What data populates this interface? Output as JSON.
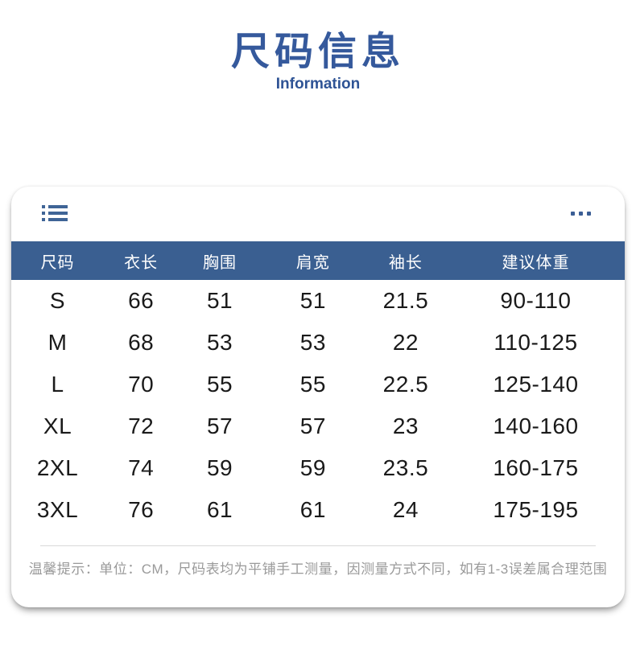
{
  "chart_data": {
    "type": "table",
    "title": "尺码信息",
    "subtitle": "Information",
    "unit": "CM",
    "columns": [
      "尺码",
      "衣长",
      "胸围",
      "肩宽",
      "袖长",
      "建议体重"
    ],
    "rows": [
      [
        "S",
        "66",
        "51",
        "51",
        "21.5",
        "90-110"
      ],
      [
        "M",
        "68",
        "53",
        "53",
        "22",
        "110-125"
      ],
      [
        "L",
        "70",
        "55",
        "55",
        "22.5",
        "125-140"
      ],
      [
        "XL",
        "72",
        "57",
        "57",
        "23",
        "140-160"
      ],
      [
        "2XL",
        "74",
        "59",
        "59",
        "23.5",
        "160-175"
      ],
      [
        "3XL",
        "76",
        "61",
        "61",
        "24",
        "175-195"
      ]
    ],
    "note": "温馨提示：单位：CM，尺码表均为平铺手工测量，因测量方式不同，如有1-3误差属合理范围"
  },
  "icons": {
    "list": "list-icon",
    "more": "ellipsis-icon"
  },
  "colors": {
    "title_blue": "#35599c",
    "subtitle_blue": "#2e5395",
    "header_bar_blue": "#3a5f91",
    "icon_blue": "#3f6496",
    "note_gray": "#9a9a9a",
    "row_text": "#1a1a1a"
  }
}
